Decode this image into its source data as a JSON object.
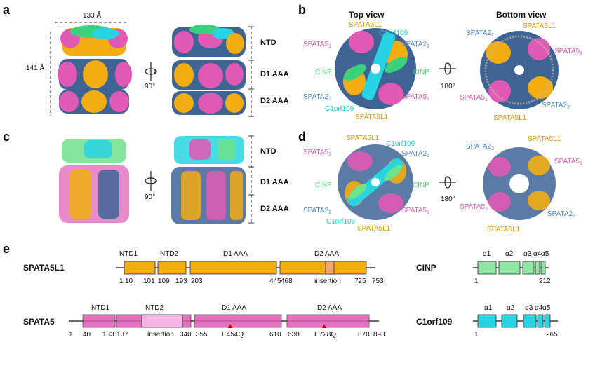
{
  "panels": {
    "a": "a",
    "b": "b",
    "c": "c",
    "d": "d",
    "e": "e"
  },
  "dimensions": {
    "width": "133 Å",
    "height": "141 Å"
  },
  "rotation": {
    "r90": "90°",
    "r180": "180°"
  },
  "layers": {
    "ntd": "NTD",
    "d1": "D1 AAA",
    "d2": "D2 AAA"
  },
  "views": {
    "top": "Top view",
    "bottom": "Bottom view"
  },
  "names": {
    "spata5l1": "SPATA5L1",
    "c1orf109": "C1orf109",
    "spata5": "SPATA5",
    "spata2": "SPATA2",
    "cinp": "CINP"
  },
  "colors": {
    "spata5": "#e05ab4",
    "spata2": "#4f86c6",
    "spata5l1": "#f1ad12",
    "cinp": "#6ee28c",
    "c1orf109": "#28d3e3",
    "insertion": "#f3a46a",
    "spata5_insertion": "#f6b6e4"
  },
  "domains": {
    "spata5l1": {
      "name": "SPATA5L1",
      "blocks": [
        "NTD1",
        "NTD2",
        "D1 AAA",
        "D2 AAA"
      ],
      "insertion": "insertion",
      "positions": [
        "1",
        "10",
        "101",
        "109",
        "193",
        "203",
        "445",
        "468",
        "725",
        "753"
      ]
    },
    "spata5": {
      "name": "SPATA5",
      "blocks": [
        "NTD1",
        "NTD2",
        "D1 AAA",
        "D2 AAA"
      ],
      "insertion": "insertion",
      "positions": [
        "1",
        "40",
        "133",
        "137",
        "340",
        "355",
        "610",
        "630",
        "870",
        "893"
      ],
      "mutations": [
        "E454Q",
        "E728Q"
      ]
    },
    "cinp": {
      "name": "CINP",
      "helices": [
        "α1",
        "α2",
        "α3",
        "α4",
        "α5"
      ],
      "positions": [
        "1",
        "212"
      ]
    },
    "c1orf109": {
      "name": "C1orf109",
      "helices": [
        "α1",
        "α2",
        "α3",
        "α4",
        "α5"
      ],
      "positions": [
        "1",
        "265"
      ]
    }
  }
}
